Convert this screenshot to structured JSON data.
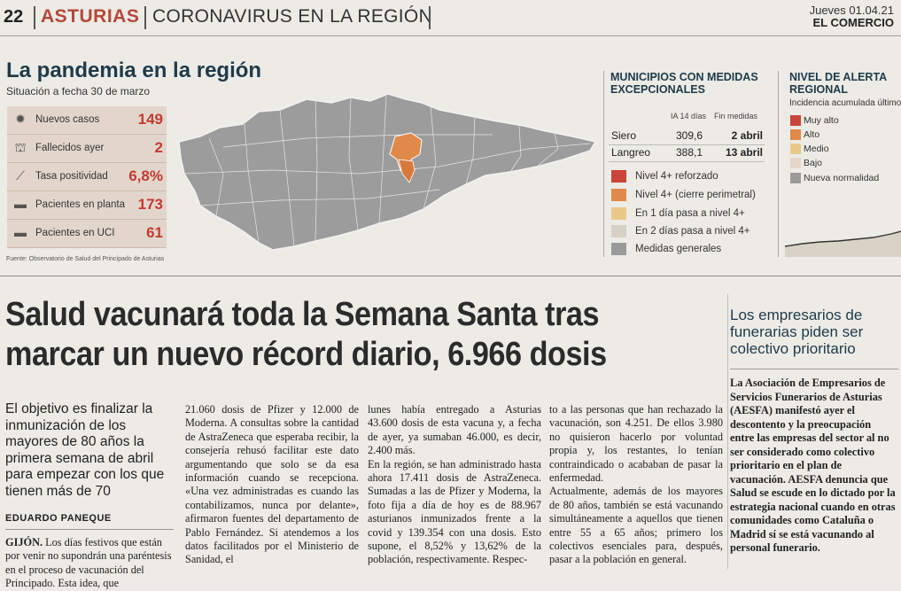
{
  "header": {
    "page_number": "22",
    "section": "ASTURIAS",
    "subsection": "CORONAVIRUS EN LA REGIÓN",
    "date": "Jueves 01.04.21",
    "paper": "EL COMERCIO"
  },
  "infographic": {
    "title": "La pandemia en la región",
    "subtitle": "Situación a fecha 30 de marzo",
    "stats": [
      {
        "icon": "virus-icon",
        "label": "Nuevos casos",
        "value": "149"
      },
      {
        "icon": "grave-icon",
        "label": "Fallecidos ayer",
        "value": "2"
      },
      {
        "icon": "test-icon",
        "label": "Tasa positividad",
        "value": "6,8%"
      },
      {
        "icon": "bed-icon",
        "label": "Pacientes en planta",
        "value": "173"
      },
      {
        "icon": "bed-icon",
        "label": "Pacientes en UCI",
        "value": "61"
      }
    ],
    "source": "Fuente: Observatorio de Salud del Principado de Asturias",
    "municipalities": {
      "title": "MUNICIPIOS CON MEDIDAS EXCEPCIONALES",
      "col_ia": "IA 14 días",
      "col_end": "Fin medidas",
      "rows": [
        {
          "name": "Siero",
          "ia": "309,6",
          "end": "2 abril"
        },
        {
          "name": "Langreo",
          "ia": "388,1",
          "end": "13 abril"
        }
      ]
    },
    "legend": [
      {
        "label": "Nivel 4+ reforzado",
        "color": "#c9443a"
      },
      {
        "label": "Nivel 4+ (cierre perimetral)",
        "color": "#e0894a"
      },
      {
        "label": "En 1 día  pasa a nivel 4+",
        "color": "#e9c98a"
      },
      {
        "label": "En 2 días  pasa a nivel 4+",
        "color": "#d6d1c4"
      },
      {
        "label": "Medidas generales",
        "color": "#9a9a9a"
      }
    ],
    "alert": {
      "title": "NIVEL DE ALERTA REGIONAL",
      "subtitle": "Incidencia acumulada últimos",
      "levels": [
        {
          "label": "Muy alto",
          "color": "#c9443a"
        },
        {
          "label": "Alto",
          "color": "#e0894a"
        },
        {
          "label": "Medio",
          "color": "#e9c98a"
        },
        {
          "label": "Bajo",
          "color": "#e4d7c9"
        },
        {
          "label": "Nueva normalidad",
          "color": "#9a9a9a"
        }
      ]
    }
  },
  "article": {
    "headline": "Salud vacunará toda la Semana Santa tras marcar un nuevo récord diario, 6.966 dosis",
    "lead": "El objetivo es finalizar la inmunización de los mayores de 80 años la primera semana de abril para empezar con los que tienen más de 70",
    "author": "EDUARDO PANEQUE",
    "col0_place": "GIJÓN.",
    "col0": " Los días festivos que están por venir no supondrán una paréntesis en el proceso de vacunación del Principado. Esta idea, que",
    "col1": "21.060 dosis de Pfizer y 12.000 de Moderna. A consultas sobre la cantidad de AstraZeneca que esperaba recibir, la consejería rehusó facilitar este dato argumentando que solo se da esa información cuando se recepciona. «Una vez administradas es cuando las contabilizamos, nunca por delante», afirmaron fuentes del departamento de Pablo Fernández. Si atendemos a los datos facilitados por el Ministerio de Sanidad, el",
    "col2": "lunes había entregado a Asturias 43.600 dosis de esta vacuna y, a fecha de ayer, ya sumaban 46.000, es decir, 2.400 más.\n    En la región, se han administrado hasta ahora 17.411 dosis de AstraZeneca. Sumadas a las de Pfizer y Moderna, la foto fija a día de hoy es de 88.967 asturianos inmunizados frente a la covid y 139.354 con una dosis. Esto supone, el 8,52% y 13,62% de la población, respectivamente. Respec-",
    "col3": "to a las personas que han rechazado la vacunación, son 4.251. De ellos 3.980 no quisieron hacerlo por voluntad propia y, los restantes, lo tenían contraindicado o acababan de pasar la enfermedad.\n    Actualmente, además de los mayores de 80 años, también se está vacunando simultáneamente a aquellos que tienen entre 55 a 65 años; primero los colectivos esenciales para, después, pasar a la población en general."
  },
  "sidebar": {
    "title": "Los empresarios de funerarias piden ser colectivo prioritario",
    "body": "La Asociación de Empresarios de Servicios Funerarios de Asturias (AESFA) manifestó ayer el descontento y la preocupación entre las empresas del sector al no ser considerado como colectivo prioritario en el plan de vacunación. AESFA denuncia que Salud se escude en lo dictado por la estrategia nacional cuando en otras comunidades como Cataluña o Madrid sí se está vacunando al personal funerario."
  }
}
